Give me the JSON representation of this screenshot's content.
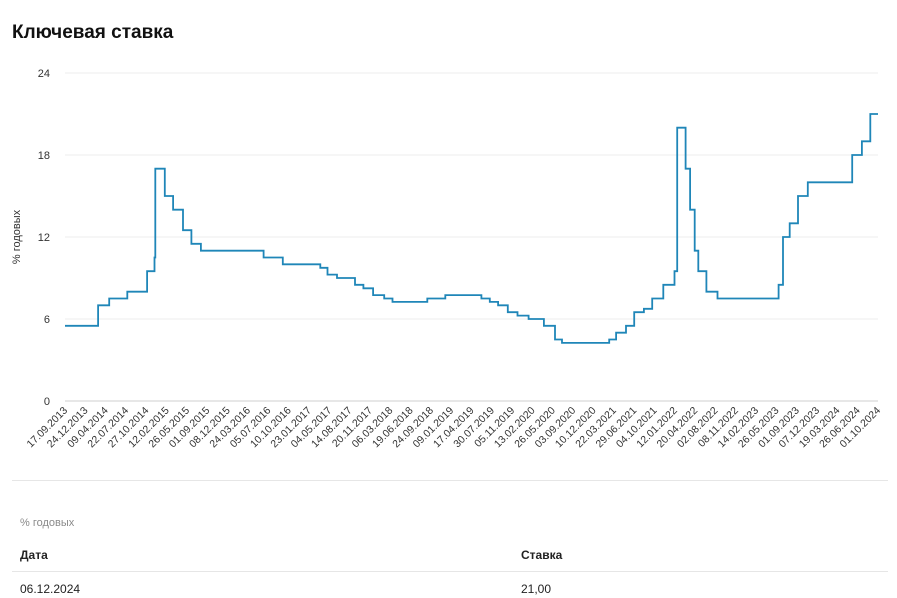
{
  "page": {
    "title": "Ключевая ставка"
  },
  "chart_data": {
    "type": "line",
    "step": true,
    "title": "Ключевая ставка",
    "xlabel": "",
    "ylabel": "% годовых",
    "ylim": [
      0,
      24
    ],
    "yticks": [
      0,
      6,
      12,
      18,
      24
    ],
    "grid": true,
    "line_color": "#1f86b8",
    "xlim": [
      "17.09.2013",
      "06.12.2024"
    ],
    "x_tick_labels": [
      "17.09.2013",
      "24.12.2013",
      "09.04.2014",
      "22.07.2014",
      "27.10.2014",
      "12.02.2015",
      "26.05.2015",
      "01.09.2015",
      "08.12.2015",
      "24.03.2016",
      "05.07.2016",
      "10.10.2016",
      "23.01.2017",
      "04.05.2017",
      "14.08.2017",
      "20.11.2017",
      "06.03.2018",
      "19.06.2018",
      "24.09.2018",
      "09.01.2019",
      "17.04.2019",
      "30.07.2019",
      "05.11.2019",
      "13.02.2020",
      "26.05.2020",
      "03.09.2020",
      "10.12.2020",
      "22.03.2021",
      "29.06.2021",
      "04.10.2021",
      "12.01.2022",
      "20.04.2022",
      "02.08.2022",
      "08.11.2022",
      "14.02.2023",
      "26.05.2023",
      "01.09.2023",
      "07.12.2023",
      "19.03.2024",
      "26.06.2024",
      "01.10.2024"
    ],
    "series": [
      {
        "points": [
          [
            "17.09.2013",
            5.5
          ],
          [
            "03.03.2014",
            7.0
          ],
          [
            "28.04.2014",
            7.5
          ],
          [
            "28.07.2014",
            8.0
          ],
          [
            "05.11.2014",
            9.5
          ],
          [
            "12.12.2014",
            10.5
          ],
          [
            "16.12.2014",
            17.0
          ],
          [
            "02.02.2015",
            15.0
          ],
          [
            "16.03.2015",
            14.0
          ],
          [
            "05.05.2015",
            12.5
          ],
          [
            "16.06.2015",
            11.5
          ],
          [
            "03.08.2015",
            11.0
          ],
          [
            "14.06.2016",
            10.5
          ],
          [
            "19.09.2016",
            10.0
          ],
          [
            "27.03.2017",
            9.75
          ],
          [
            "02.05.2017",
            9.25
          ],
          [
            "19.06.2017",
            9.0
          ],
          [
            "18.09.2017",
            8.5
          ],
          [
            "30.10.2017",
            8.25
          ],
          [
            "18.12.2017",
            7.75
          ],
          [
            "12.02.2018",
            7.5
          ],
          [
            "26.03.2018",
            7.25
          ],
          [
            "17.09.2018",
            7.5
          ],
          [
            "17.12.2018",
            7.75
          ],
          [
            "17.06.2019",
            7.5
          ],
          [
            "29.07.2019",
            7.25
          ],
          [
            "09.09.2019",
            7.0
          ],
          [
            "28.10.2019",
            6.5
          ],
          [
            "16.12.2019",
            6.25
          ],
          [
            "10.02.2020",
            6.0
          ],
          [
            "27.04.2020",
            5.5
          ],
          [
            "22.06.2020",
            4.5
          ],
          [
            "27.07.2020",
            4.25
          ],
          [
            "22.03.2021",
            4.5
          ],
          [
            "26.04.2021",
            5.0
          ],
          [
            "15.06.2021",
            5.5
          ],
          [
            "26.07.2021",
            6.5
          ],
          [
            "13.09.2021",
            6.75
          ],
          [
            "25.10.2021",
            7.5
          ],
          [
            "20.12.2021",
            8.5
          ],
          [
            "14.02.2022",
            9.5
          ],
          [
            "28.02.2022",
            20.0
          ],
          [
            "11.04.2022",
            17.0
          ],
          [
            "04.05.2022",
            14.0
          ],
          [
            "27.05.2022",
            11.0
          ],
          [
            "14.06.2022",
            9.5
          ],
          [
            "25.07.2022",
            8.0
          ],
          [
            "19.09.2022",
            7.5
          ],
          [
            "24.07.2023",
            8.5
          ],
          [
            "15.08.2023",
            12.0
          ],
          [
            "18.09.2023",
            13.0
          ],
          [
            "30.10.2023",
            15.0
          ],
          [
            "18.12.2023",
            16.0
          ],
          [
            "29.07.2024",
            18.0
          ],
          [
            "16.09.2024",
            19.0
          ],
          [
            "28.10.2024",
            21.0
          ],
          [
            "06.12.2024",
            21.0
          ]
        ]
      }
    ]
  },
  "table": {
    "unit_note": "% годовых",
    "col_date": "Дата",
    "col_rate": "Ставка",
    "row_date": "06.12.2024",
    "row_rate": "21,00"
  }
}
